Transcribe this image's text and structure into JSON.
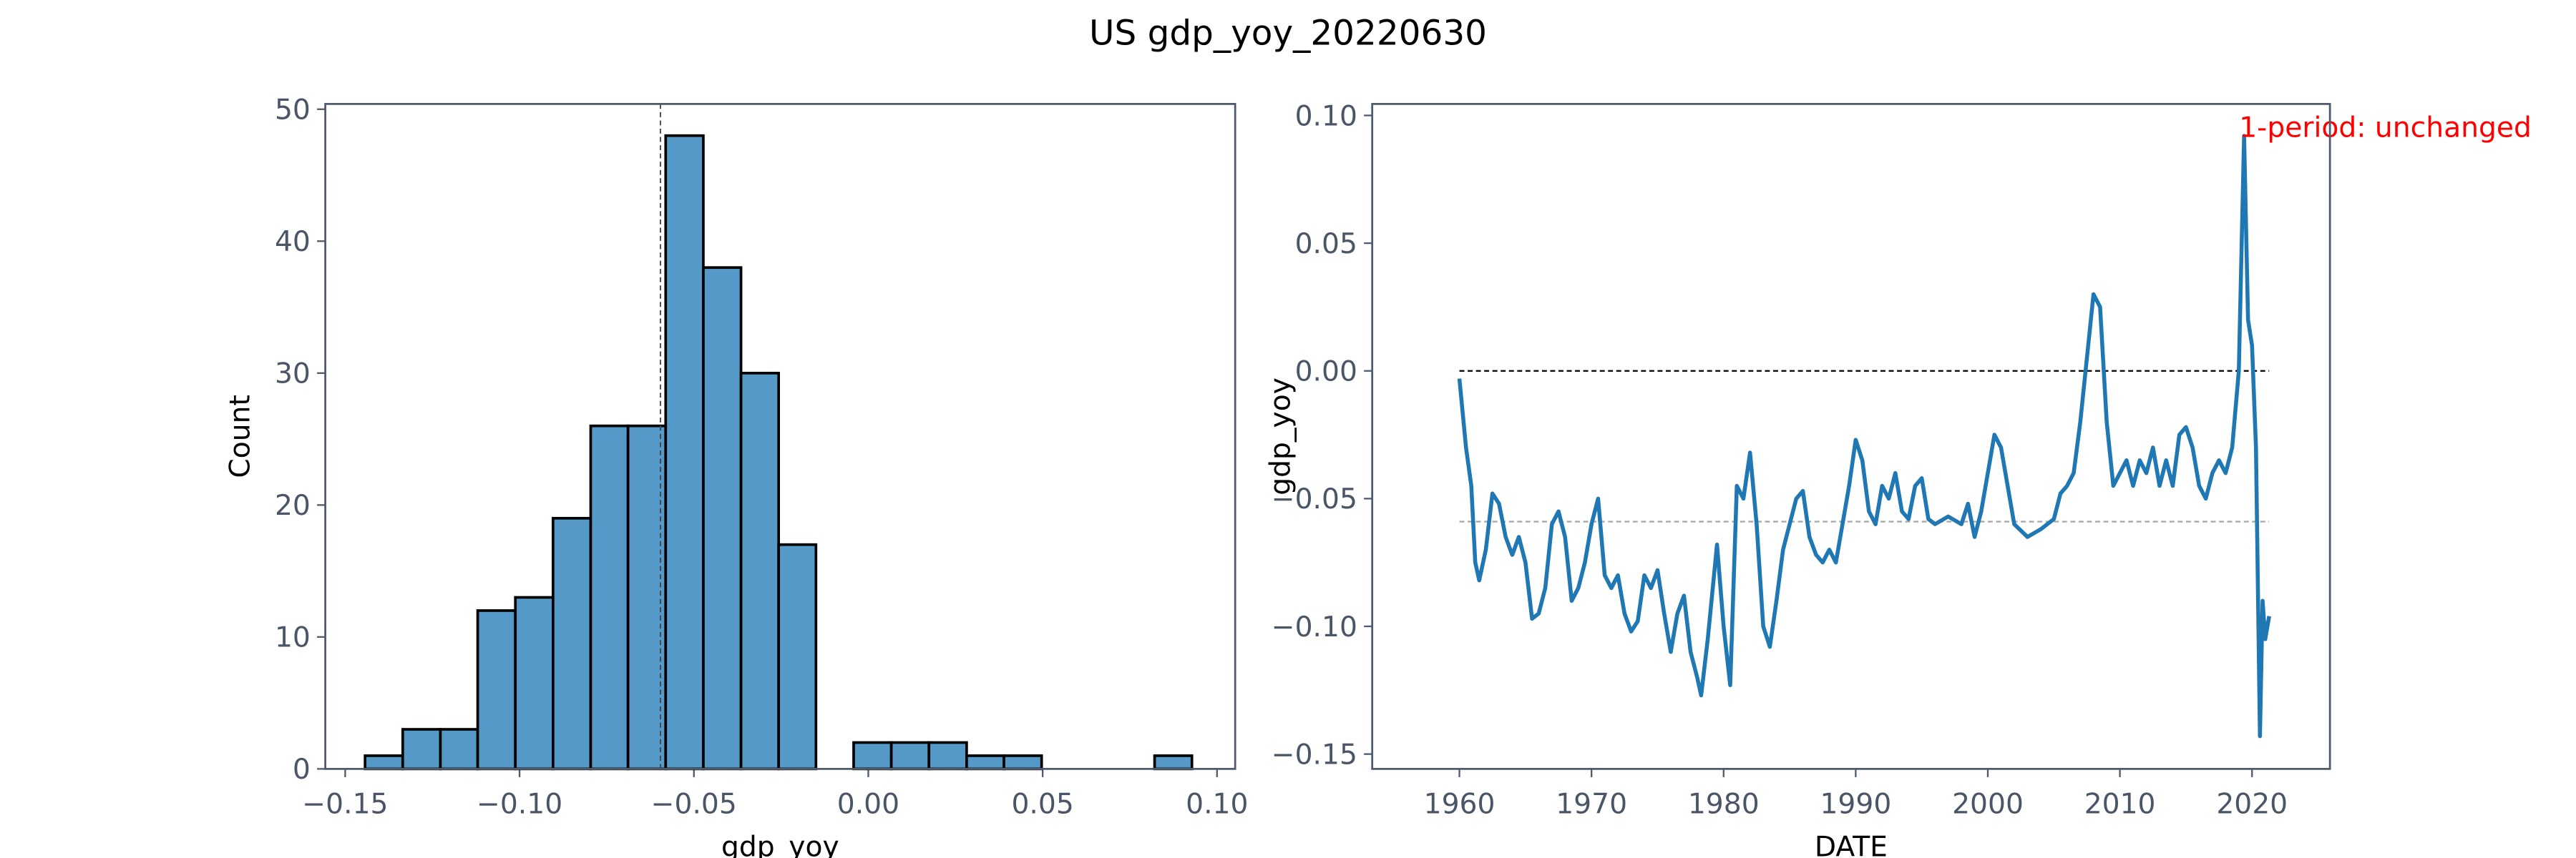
{
  "title": "US gdp_yoy_20220630",
  "chart_data": [
    {
      "type": "histogram",
      "xlabel": "gdp_yoy",
      "ylabel": "Count",
      "color": "#5499c7",
      "bins": [
        -0.1443,
        -0.1335,
        -0.1227,
        -0.112,
        -0.1012,
        -0.0904,
        -0.0796,
        -0.0689,
        -0.0581,
        -0.0473,
        -0.0365,
        -0.0257,
        -0.015,
        -0.0042,
        0.0066,
        0.0174,
        0.0282,
        0.0389,
        0.0497,
        0.0605,
        0.0713,
        0.0821,
        0.0928
      ],
      "values": [
        1,
        3,
        3,
        12,
        13,
        19,
        26,
        26,
        48,
        38,
        30,
        17,
        0,
        2,
        2,
        2,
        1,
        1,
        0,
        0,
        0,
        1
      ],
      "vline": -0.0596,
      "xlim": [
        -0.1557,
        0.1052
      ],
      "ylim": [
        0,
        50.4
      ],
      "xticks": [
        {
          "value": -0.15,
          "label": "−0.15"
        },
        {
          "value": -0.1,
          "label": "−0.10"
        },
        {
          "value": -0.05,
          "label": "−0.05"
        },
        {
          "value": 0,
          "label": "0.00"
        },
        {
          "value": 0.05,
          "label": "0.05"
        },
        {
          "value": 0.1,
          "label": "0.10"
        }
      ],
      "yticks": [
        0,
        10,
        20,
        30,
        40,
        50
      ]
    },
    {
      "type": "line",
      "xlabel": "DATE",
      "ylabel": "gdp_yoy",
      "annotation": "1-period: unchanged",
      "annotation_color": "#ff0000",
      "hlines": [
        {
          "value": 0,
          "color": "#000000"
        },
        {
          "value": -0.059,
          "color": "#aaaaaa"
        }
      ],
      "series": [
        {
          "color": "#1f77b4",
          "x": [
            1960.0,
            1960.5,
            1960.9,
            1961.2,
            1961.5,
            1962.0,
            1962.5,
            1963.0,
            1963.5,
            1964.0,
            1964.5,
            1965.0,
            1965.5,
            1966.0,
            1966.5,
            1967.0,
            1967.5,
            1968.0,
            1968.5,
            1969.0,
            1969.5,
            1970.0,
            1970.5,
            1971.0,
            1971.5,
            1972.0,
            1972.5,
            1973.0,
            1973.5,
            1974.0,
            1974.5,
            1975.0,
            1975.5,
            1976.0,
            1976.5,
            1977.0,
            1977.5,
            1978.0,
            1978.3,
            1978.8,
            1979.5,
            1980.0,
            1980.5,
            1981.0,
            1981.5,
            1982.0,
            1982.5,
            1983.0,
            1983.5,
            1984.0,
            1984.5,
            1985.0,
            1985.5,
            1986.0,
            1986.5,
            1987.0,
            1987.5,
            1988.0,
            1988.5,
            1989.0,
            1989.5,
            1990.0,
            1990.5,
            1991.0,
            1991.5,
            1992.0,
            1992.5,
            1993.0,
            1993.5,
            1994.0,
            1994.5,
            1995.0,
            1995.5,
            1996.0,
            1997.0,
            1998.0,
            1998.5,
            1999.0,
            1999.5,
            2000.0,
            2000.5,
            2001.0,
            2001.5,
            2002.0,
            2003.0,
            2004.0,
            2005.0,
            2005.5,
            2006.0,
            2006.5,
            2007.0,
            2007.5,
            2008.0,
            2008.5,
            2009.0,
            2009.5,
            2010.0,
            2010.5,
            2011.0,
            2011.5,
            2012.0,
            2012.5,
            2013.0,
            2013.5,
            2014.0,
            2014.5,
            2015.0,
            2015.5,
            2016.0,
            2016.5,
            2017.0,
            2017.5,
            2018.0,
            2018.5,
            2019.0,
            2019.4,
            2019.7,
            2020.0,
            2020.3,
            2020.6,
            2020.8,
            2021.0,
            2021.3
          ],
          "values": [
            -0.003,
            -0.03,
            -0.045,
            -0.075,
            -0.082,
            -0.07,
            -0.048,
            -0.052,
            -0.065,
            -0.072,
            -0.065,
            -0.075,
            -0.097,
            -0.095,
            -0.085,
            -0.06,
            -0.055,
            -0.065,
            -0.09,
            -0.085,
            -0.075,
            -0.06,
            -0.05,
            -0.08,
            -0.085,
            -0.08,
            -0.095,
            -0.102,
            -0.098,
            -0.08,
            -0.085,
            -0.078,
            -0.095,
            -0.11,
            -0.095,
            -0.088,
            -0.11,
            -0.12,
            -0.127,
            -0.105,
            -0.068,
            -0.1,
            -0.123,
            -0.045,
            -0.05,
            -0.032,
            -0.06,
            -0.1,
            -0.108,
            -0.09,
            -0.07,
            -0.06,
            -0.05,
            -0.047,
            -0.065,
            -0.072,
            -0.075,
            -0.07,
            -0.075,
            -0.06,
            -0.045,
            -0.027,
            -0.035,
            -0.055,
            -0.06,
            -0.045,
            -0.05,
            -0.04,
            -0.055,
            -0.058,
            -0.045,
            -0.042,
            -0.058,
            -0.06,
            -0.057,
            -0.06,
            -0.052,
            -0.065,
            -0.055,
            -0.04,
            -0.025,
            -0.03,
            -0.045,
            -0.06,
            -0.065,
            -0.062,
            -0.058,
            -0.048,
            -0.045,
            -0.04,
            -0.02,
            0.005,
            0.03,
            0.025,
            -0.02,
            -0.045,
            -0.04,
            -0.035,
            -0.045,
            -0.035,
            -0.04,
            -0.03,
            -0.045,
            -0.035,
            -0.045,
            -0.025,
            -0.022,
            -0.03,
            -0.045,
            -0.05,
            -0.04,
            -0.035,
            -0.04,
            -0.03,
            0.0,
            0.092,
            0.02,
            0.01,
            -0.03,
            -0.143,
            -0.09,
            -0.105,
            -0.096
          ]
        }
      ],
      "xlim": [
        1953.4,
        2025.9
      ],
      "ylim": [
        -0.1558,
        0.1045
      ],
      "xticks": [
        1960,
        1970,
        1980,
        1990,
        2000,
        2010,
        2020
      ],
      "yticks": [
        {
          "value": 0.1,
          "label": "0.10"
        },
        {
          "value": 0.05,
          "label": "0.05"
        },
        {
          "value": 0,
          "label": "0.00"
        },
        {
          "value": -0.05,
          "label": "−0.05"
        },
        {
          "value": -0.1,
          "label": "−0.10"
        },
        {
          "value": -0.15,
          "label": "−0.15"
        }
      ]
    }
  ]
}
